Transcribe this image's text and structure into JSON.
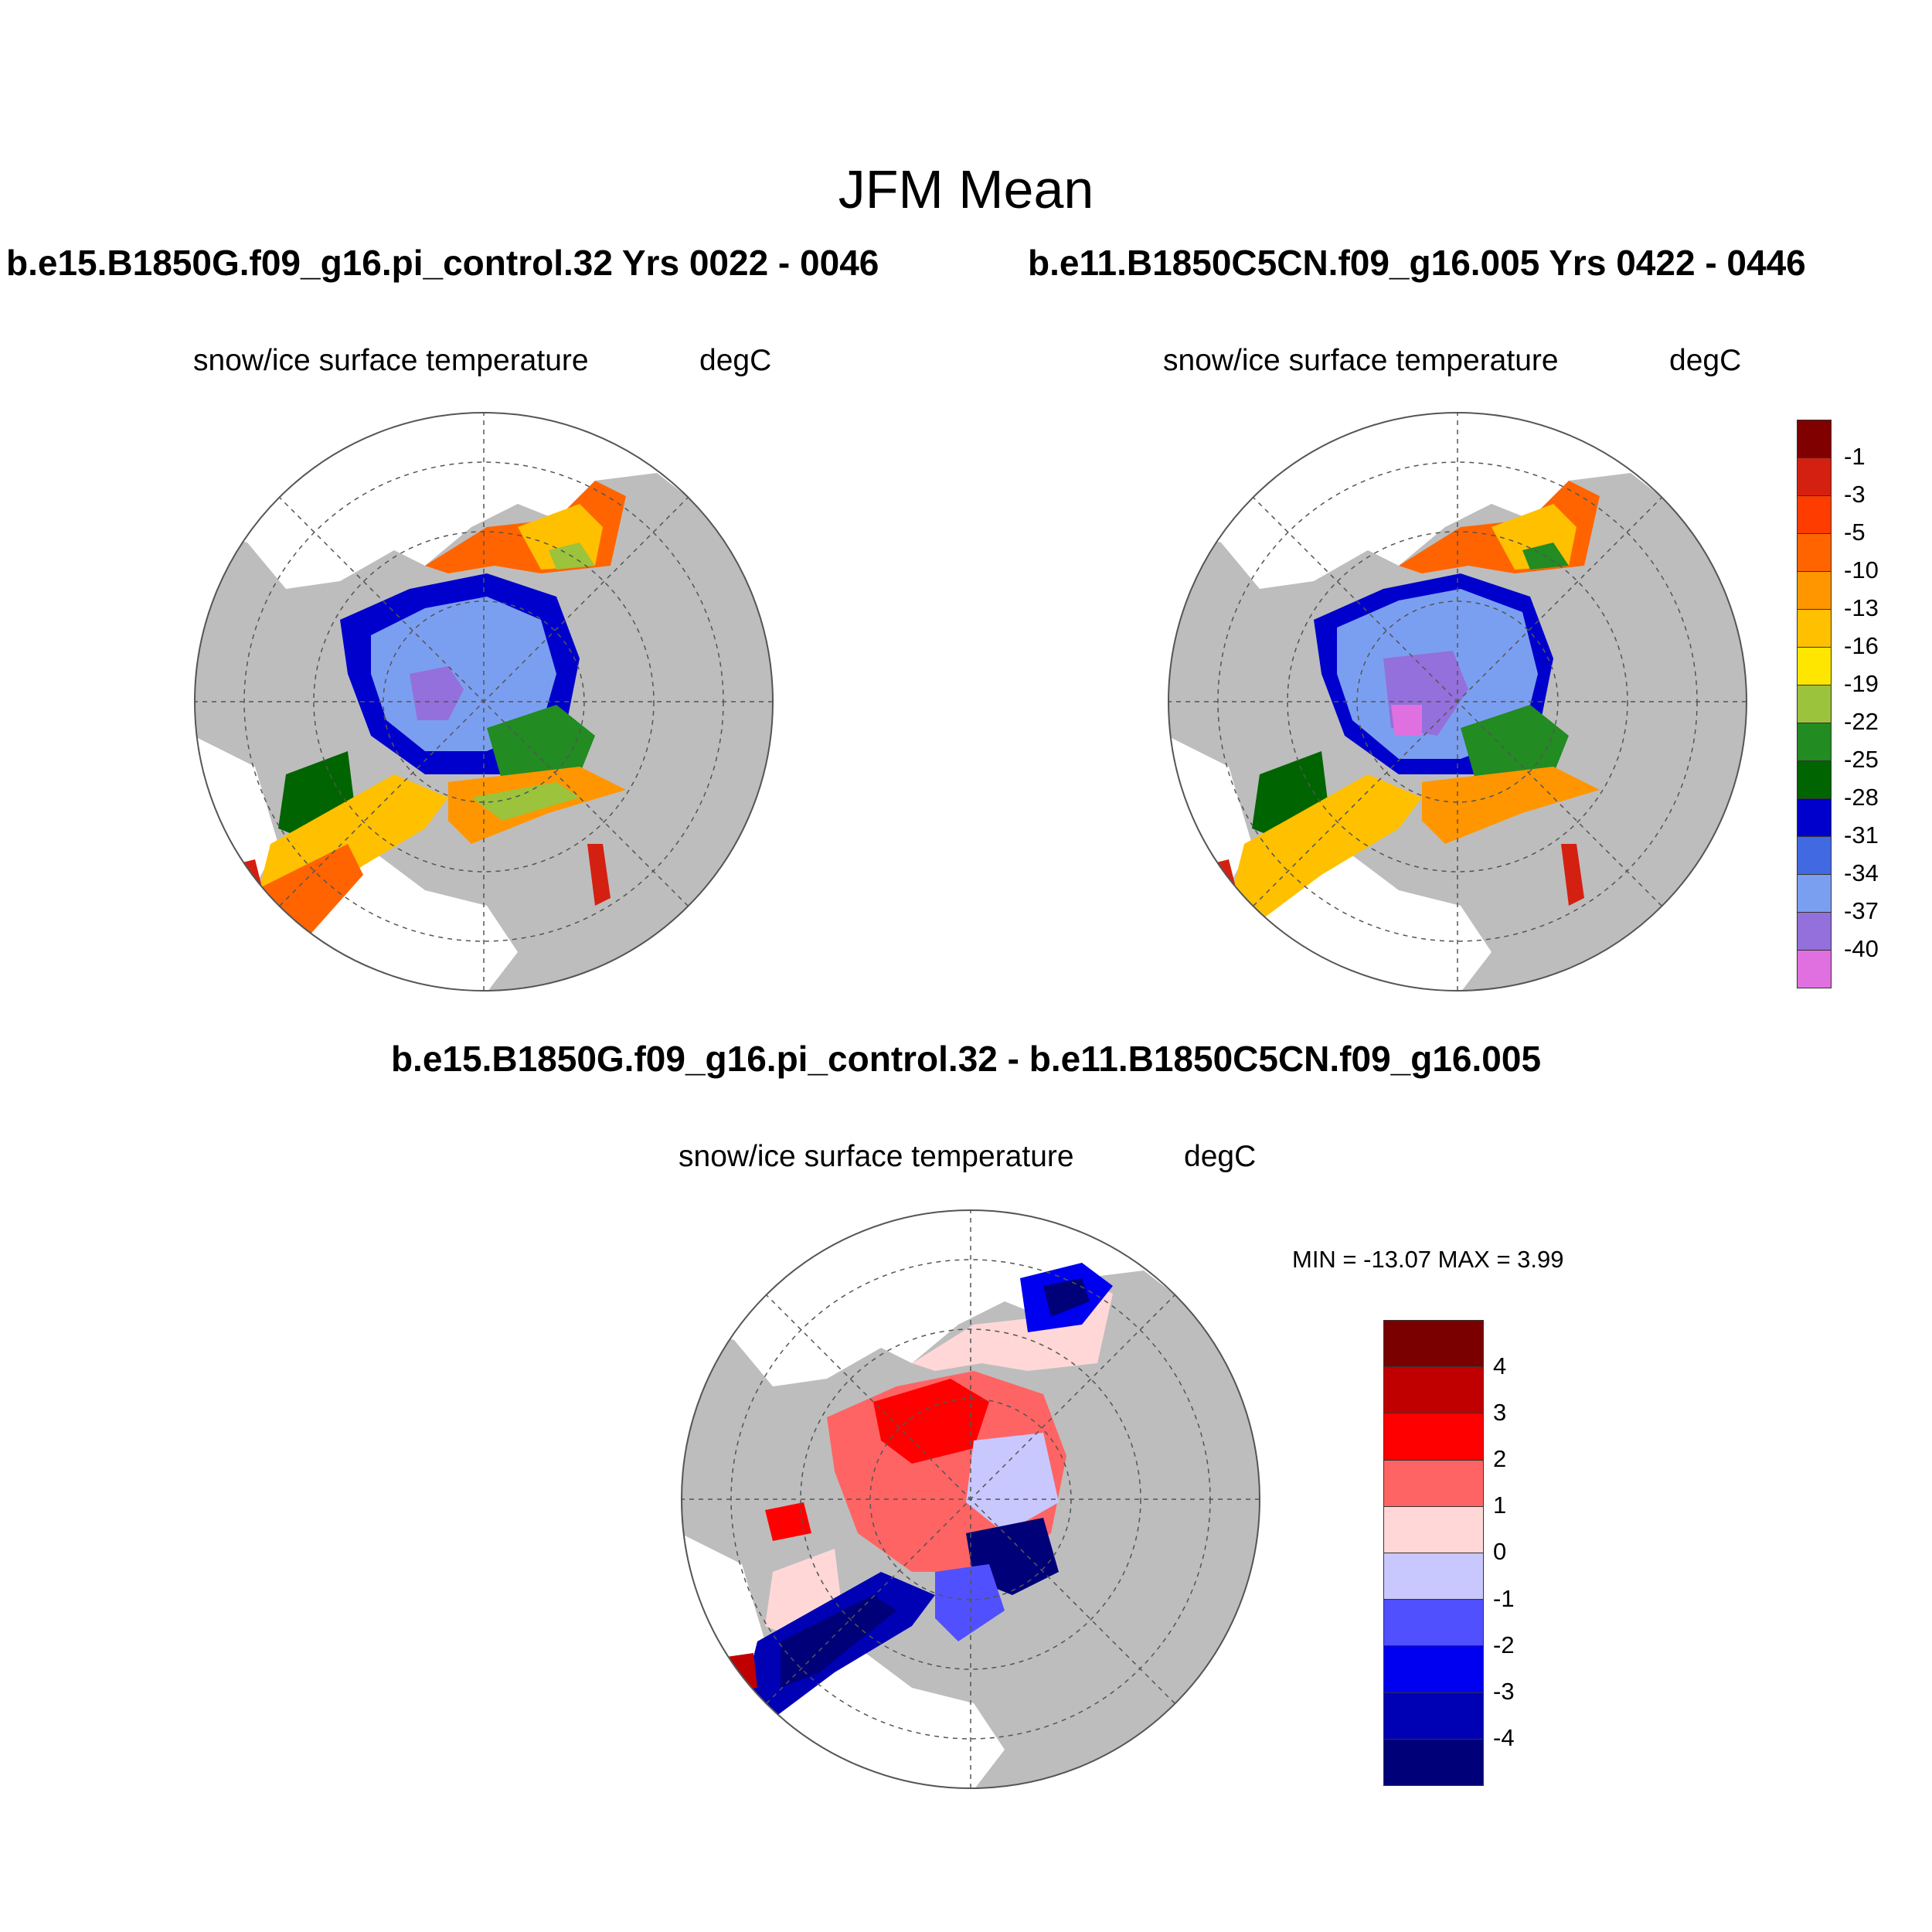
{
  "figure": {
    "title": "JFM Mean"
  },
  "panels": [
    {
      "id": "left",
      "case_title": "b.e15.B1850G.f09_g16.pi_control.32  Yrs 0022 - 0046",
      "variable": "snow/ice surface temperature",
      "units": "degC"
    },
    {
      "id": "right",
      "case_title": "b.e11.B1850C5CN.f09_g16.005  Yrs 0422 - 0446",
      "variable": "snow/ice surface temperature",
      "units": "degC"
    },
    {
      "id": "diff",
      "case_title": "b.e15.B1850G.f09_g16.pi_control.32 - b.e11.B1850C5CN.f09_g16.005",
      "variable": "snow/ice surface temperature",
      "units": "degC",
      "stats": "MIN = -13.07 MAX =   3.99"
    }
  ],
  "colorbars": {
    "temperature": {
      "labels": [
        "-1",
        "-3",
        "-5",
        "-10",
        "-13",
        "-16",
        "-19",
        "-22",
        "-25",
        "-28",
        "-31",
        "-34",
        "-37",
        "-40"
      ],
      "colors": [
        "#800000",
        "#d42010",
        "#ff3c00",
        "#ff6400",
        "#ff9600",
        "#ffc000",
        "#ffe600",
        "#9bc33c",
        "#228b22",
        "#006400",
        "#0000cd",
        "#4169e1",
        "#7b9ff0",
        "#9370db",
        "#e070e0"
      ]
    },
    "difference": {
      "labels": [
        "4",
        "3",
        "2",
        "1",
        "0",
        "-1",
        "-2",
        "-3",
        "-4"
      ],
      "colors": [
        "#7a0000",
        "#c00000",
        "#ff0000",
        "#ff6464",
        "#ffd7d7",
        "#c8c8ff",
        "#5050ff",
        "#0000f0",
        "#0000b4",
        "#000078"
      ]
    }
  },
  "map_style": {
    "land_color": "#bdbdbd",
    "ocean_color": "#ffffff",
    "grid_color": "#555555"
  }
}
